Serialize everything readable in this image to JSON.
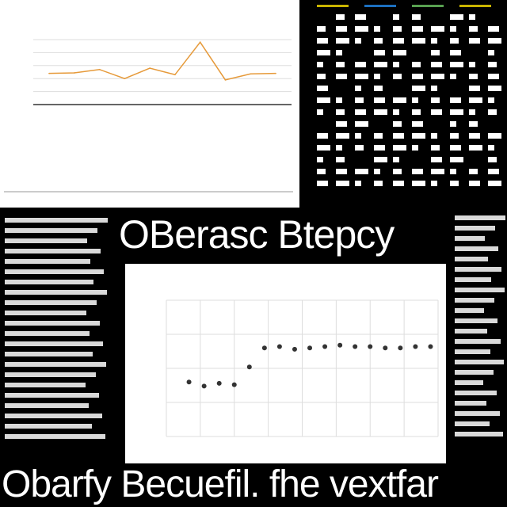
{
  "headline": "OBerasc Btepcy",
  "footer": "Obarfy Becuefil. fhe vextfar",
  "colors": {
    "background": "#000000",
    "line_series": "#e69a3a",
    "scatter_series": "#333333",
    "grid": "#dddddd"
  },
  "top_stripe_colors": [
    "#c8b400",
    "#1c6fbf",
    "#58a050",
    "#c8b400"
  ],
  "chart_data": [
    {
      "type": "line",
      "title": "",
      "xlabel": "",
      "ylabel": "",
      "ylim": [
        0,
        250
      ],
      "grid": true,
      "series": [
        {
          "values": [
            120,
            122,
            135,
            100,
            140,
            115,
            240,
            95,
            118,
            120
          ]
        }
      ]
    },
    {
      "type": "scatter",
      "title": "",
      "xlabel": "",
      "ylabel": "",
      "ylim": [
        0,
        100
      ],
      "grid": true,
      "series": [
        {
          "x": [
            1,
            2,
            3,
            4,
            5,
            6,
            7,
            8,
            9,
            10,
            11,
            12,
            13,
            14,
            15,
            16,
            17
          ],
          "values": [
            40,
            37,
            39,
            38,
            51,
            65,
            66,
            64,
            65,
            66,
            67,
            66,
            66,
            65,
            65,
            66,
            66
          ]
        }
      ]
    }
  ]
}
